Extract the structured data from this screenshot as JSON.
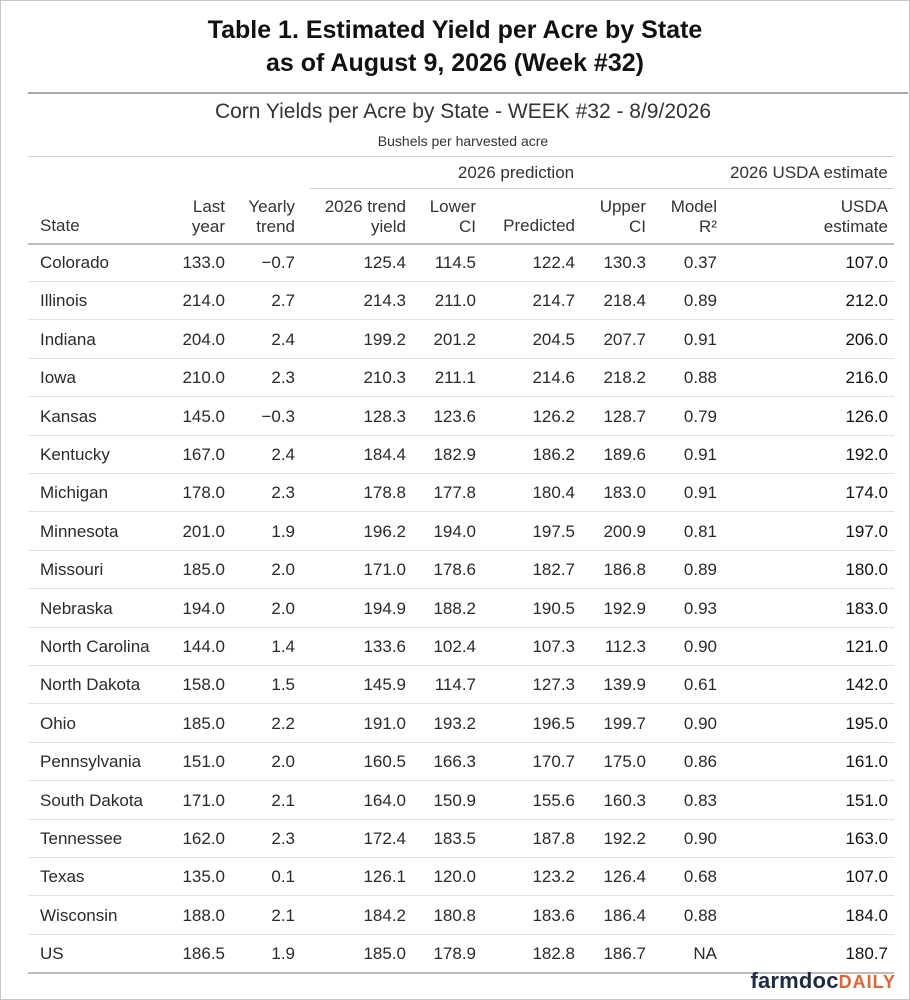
{
  "title_line1": "Table 1. Estimated Yield per Acre by State",
  "title_line2": "as of August 9, 2026 (Week #32)",
  "subtitle": "Corn Yields per Acre by State - WEEK #32 - 8/9/2026",
  "subsubtitle": "Bushels per harvested acre",
  "spanners": {
    "prediction": "2026 prediction",
    "usda": "2026 USDA estimate"
  },
  "headers": {
    "state": "State",
    "last_year_1": "Last",
    "last_year_2": "year",
    "trend_1": "Yearly",
    "trend_2": "trend",
    "trend_yield_1": "2026 trend",
    "trend_yield_2": "yield",
    "lower_1": "Lower",
    "lower_2": "CI",
    "predicted": "Predicted",
    "upper_1": "Upper",
    "upper_2": "CI",
    "r2_1": "Model",
    "r2_2": "R²",
    "usda_1": "USDA",
    "usda_2": "estimate"
  },
  "rows": [
    [
      "Colorado",
      "133.0",
      "−0.7",
      "125.4",
      "114.5",
      "122.4",
      "130.3",
      "0.37",
      "107.0"
    ],
    [
      "Illinois",
      "214.0",
      "2.7",
      "214.3",
      "211.0",
      "214.7",
      "218.4",
      "0.89",
      "212.0"
    ],
    [
      "Indiana",
      "204.0",
      "2.4",
      "199.2",
      "201.2",
      "204.5",
      "207.7",
      "0.91",
      "206.0"
    ],
    [
      "Iowa",
      "210.0",
      "2.3",
      "210.3",
      "211.1",
      "214.6",
      "218.2",
      "0.88",
      "216.0"
    ],
    [
      "Kansas",
      "145.0",
      "−0.3",
      "128.3",
      "123.6",
      "126.2",
      "128.7",
      "0.79",
      "126.0"
    ],
    [
      "Kentucky",
      "167.0",
      "2.4",
      "184.4",
      "182.9",
      "186.2",
      "189.6",
      "0.91",
      "192.0"
    ],
    [
      "Michigan",
      "178.0",
      "2.3",
      "178.8",
      "177.8",
      "180.4",
      "183.0",
      "0.91",
      "174.0"
    ],
    [
      "Minnesota",
      "201.0",
      "1.9",
      "196.2",
      "194.0",
      "197.5",
      "200.9",
      "0.81",
      "197.0"
    ],
    [
      "Missouri",
      "185.0",
      "2.0",
      "171.0",
      "178.6",
      "182.7",
      "186.8",
      "0.89",
      "180.0"
    ],
    [
      "Nebraska",
      "194.0",
      "2.0",
      "194.9",
      "188.2",
      "190.5",
      "192.9",
      "0.93",
      "183.0"
    ],
    [
      "North Carolina",
      "144.0",
      "1.4",
      "133.6",
      "102.4",
      "107.3",
      "112.3",
      "0.90",
      "121.0"
    ],
    [
      "North Dakota",
      "158.0",
      "1.5",
      "145.9",
      "114.7",
      "127.3",
      "139.9",
      "0.61",
      "142.0"
    ],
    [
      "Ohio",
      "185.0",
      "2.2",
      "191.0",
      "193.2",
      "196.5",
      "199.7",
      "0.90",
      "195.0"
    ],
    [
      "Pennsylvania",
      "151.0",
      "2.0",
      "160.5",
      "166.3",
      "170.7",
      "175.0",
      "0.86",
      "161.0"
    ],
    [
      "South Dakota",
      "171.0",
      "2.1",
      "164.0",
      "150.9",
      "155.6",
      "160.3",
      "0.83",
      "151.0"
    ],
    [
      "Tennessee",
      "162.0",
      "2.3",
      "172.4",
      "183.5",
      "187.8",
      "192.2",
      "0.90",
      "163.0"
    ],
    [
      "Texas",
      "135.0",
      "0.1",
      "126.1",
      "120.0",
      "123.2",
      "126.4",
      "0.68",
      "107.0"
    ],
    [
      "Wisconsin",
      "188.0",
      "2.1",
      "184.2",
      "180.8",
      "183.6",
      "186.4",
      "0.88",
      "184.0"
    ],
    [
      "US",
      "186.5",
      "1.9",
      "185.0",
      "178.9",
      "182.8",
      "186.7",
      "NA",
      "180.7"
    ]
  ],
  "logo": {
    "part1": "farmdoc",
    "part2": "DAILY"
  }
}
